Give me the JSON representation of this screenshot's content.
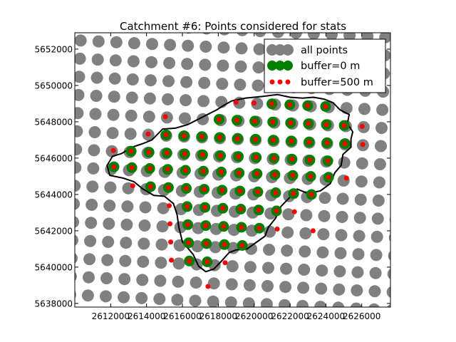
{
  "chart_data": {
    "type": "scatter",
    "title": "Catchment #6: Points considered for stats",
    "xlim": [
      2610000,
      2627600
    ],
    "ylim": [
      5637800,
      5652900
    ],
    "x_ticks": [
      {
        "value": 2612000,
        "label": "2612000"
      },
      {
        "value": 2614000,
        "label": "2614000"
      },
      {
        "value": 2616000,
        "label": "2616000"
      },
      {
        "value": 2618000,
        "label": "2618000"
      },
      {
        "value": 2620000,
        "label": "2620000"
      },
      {
        "value": 2622000,
        "label": "2622000"
      },
      {
        "value": 2624000,
        "label": "2624000"
      },
      {
        "value": 2626000,
        "label": "2626000"
      }
    ],
    "y_ticks": [
      {
        "value": 5638000,
        "label": "5638000"
      },
      {
        "value": 5640000,
        "label": "5640000"
      },
      {
        "value": 5642000,
        "label": "5642000"
      },
      {
        "value": 5644000,
        "label": "5644000"
      },
      {
        "value": 5646000,
        "label": "5646000"
      },
      {
        "value": 5648000,
        "label": "5648000"
      },
      {
        "value": 5650000,
        "label": "5650000"
      },
      {
        "value": 5652000,
        "label": "5652000"
      }
    ],
    "grid": false,
    "legend_position": "top-right",
    "series": [
      {
        "name": "all points",
        "color": "#808080",
        "marker": "large circle",
        "description": "regular rotated grid covering whole extent, spacing ~1000 m"
      },
      {
        "name": "buffer=0 m",
        "color": "#008000",
        "marker": "medium circle",
        "points": [
          [
            2620989,
            5648985
          ],
          [
            2621986,
            5648937
          ],
          [
            2622983,
            5648889
          ],
          [
            2623980,
            5648841
          ],
          [
            2618042,
            5648132
          ],
          [
            2619039,
            5648084
          ],
          [
            2620036,
            5648036
          ],
          [
            2621033,
            5647988
          ],
          [
            2622030,
            5647940
          ],
          [
            2623027,
            5647892
          ],
          [
            2624024,
            5647844
          ],
          [
            2625021,
            5647796
          ],
          [
            2615090,
            5647277
          ],
          [
            2616087,
            5647229
          ],
          [
            2617084,
            5647181
          ],
          [
            2618081,
            5647133
          ],
          [
            2619078,
            5647085
          ],
          [
            2620075,
            5647037
          ],
          [
            2621072,
            5646989
          ],
          [
            2622069,
            5646941
          ],
          [
            2623066,
            5646893
          ],
          [
            2624063,
            5646845
          ],
          [
            2625060,
            5646797
          ],
          [
            2613141,
            5646376
          ],
          [
            2614138,
            5646328
          ],
          [
            2615135,
            5646280
          ],
          [
            2616132,
            5646232
          ],
          [
            2617129,
            5646184
          ],
          [
            2618126,
            5646136
          ],
          [
            2619123,
            5646088
          ],
          [
            2620120,
            5646040
          ],
          [
            2621117,
            5645992
          ],
          [
            2622114,
            5645944
          ],
          [
            2623111,
            5645896
          ],
          [
            2624108,
            5645848
          ],
          [
            2612186,
            5645523
          ],
          [
            2613183,
            5645475
          ],
          [
            2614180,
            5645427
          ],
          [
            2615177,
            5645379
          ],
          [
            2616174,
            5645331
          ],
          [
            2617171,
            5645283
          ],
          [
            2618168,
            5645235
          ],
          [
            2619165,
            5645187
          ],
          [
            2620162,
            5645139
          ],
          [
            2621159,
            5645091
          ],
          [
            2622156,
            5645043
          ],
          [
            2623153,
            5644995
          ],
          [
            2624150,
            5644947
          ],
          [
            2614225,
            5644430
          ],
          [
            2615222,
            5644382
          ],
          [
            2616219,
            5644334
          ],
          [
            2617216,
            5644286
          ],
          [
            2618213,
            5644238
          ],
          [
            2619210,
            5644190
          ],
          [
            2620207,
            5644142
          ],
          [
            2621204,
            5644094
          ],
          [
            2622201,
            5644046
          ],
          [
            2623198,
            5643998
          ],
          [
            2616261,
            5643335
          ],
          [
            2617258,
            5643287
          ],
          [
            2618255,
            5643239
          ],
          [
            2619252,
            5643191
          ],
          [
            2620249,
            5643143
          ],
          [
            2621246,
            5643095
          ],
          [
            2616303,
            5642336
          ],
          [
            2617300,
            5642288
          ],
          [
            2618297,
            5642240
          ],
          [
            2619294,
            5642192
          ],
          [
            2620291,
            5642144
          ],
          [
            2616345,
            5641337
          ],
          [
            2617342,
            5641289
          ],
          [
            2618339,
            5641241
          ],
          [
            2619336,
            5641193
          ],
          [
            2616384,
            5640338
          ],
          [
            2617381,
            5640290
          ]
        ]
      },
      {
        "name": "buffer=500 m",
        "color": "#ff0000",
        "marker": "small circle",
        "extra_points": [
          [
            2618996,
            5649081
          ],
          [
            2619993,
            5649033
          ],
          [
            2615048,
            5648276
          ],
          [
            2626018,
            5647748
          ],
          [
            2614093,
            5647325
          ],
          [
            2626057,
            5646749
          ],
          [
            2612144,
            5646424
          ],
          [
            2625147,
            5644899
          ],
          [
            2613228,
            5644478
          ],
          [
            2615264,
            5643383
          ],
          [
            2622243,
            5643047
          ],
          [
            2615306,
            5642384
          ],
          [
            2621288,
            5642096
          ],
          [
            2623284,
            5642000
          ],
          [
            2615348,
            5641385
          ],
          [
            2615387,
            5640386
          ],
          [
            2618378,
            5640242
          ],
          [
            2617426,
            5638939
          ]
        ]
      }
    ]
  }
}
